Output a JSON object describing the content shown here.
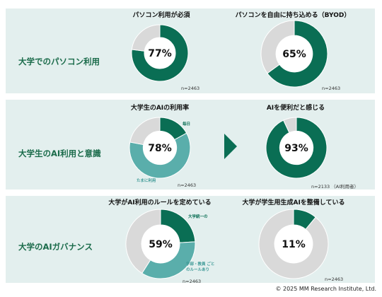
{
  "sections": [
    {
      "label": "大学でのパソコン利用"
    },
    {
      "label": "大学生のAI利用と意識"
    },
    {
      "label": "大学のAIガバナンス"
    }
  ],
  "colors": {
    "dark_green": "#0a6e54",
    "teal": "#5aaeab",
    "gray": "#d9d9d9",
    "panel_bg": "#e3efee",
    "section_label": "#1a6b4a"
  },
  "chart_data": [
    {
      "type": "pie",
      "title": "パソコン利用が必須",
      "center_label": "77%",
      "n": "n=2463",
      "series": [
        {
          "values": [
            77,
            23
          ],
          "colors": [
            "#0a6e54",
            "#d9d9d9"
          ]
        }
      ]
    },
    {
      "type": "pie",
      "title": "パソコンを自由に持ち込める（BYOD）",
      "center_label": "65%",
      "n": "n=2463",
      "series": [
        {
          "values": [
            65,
            35
          ],
          "colors": [
            "#0a6e54",
            "#d9d9d9"
          ]
        }
      ]
    },
    {
      "type": "pie",
      "title": "大学生のAIの利用率",
      "center_label": "78%",
      "n": "n=2463",
      "categories": [
        "毎日",
        "たまに利用",
        ""
      ],
      "series": [
        {
          "values": [
            17,
            61,
            22
          ],
          "colors": [
            "#0a6e54",
            "#5aaeab",
            "#d9d9d9"
          ]
        }
      ]
    },
    {
      "type": "pie",
      "title": "AIを便利だと感じる",
      "center_label": "93%",
      "n": "n=2133 （AI利用者）",
      "series": [
        {
          "values": [
            93,
            7
          ],
          "colors": [
            "#0a6e54",
            "#d9d9d9"
          ]
        }
      ]
    },
    {
      "type": "pie",
      "title": "大学がAI利用のルールを定めている",
      "center_label": "59%",
      "n": "n=2463",
      "categories": [
        "大学統一の",
        "学部・教員 ごとのルールあり",
        ""
      ],
      "series": [
        {
          "values": [
            24,
            35,
            41
          ],
          "colors": [
            "#0a6e54",
            "#5aaeab",
            "#d9d9d9"
          ]
        }
      ]
    },
    {
      "type": "pie",
      "title": "大学が学生用生成AIを整備している",
      "center_label": "11%",
      "n": "n=2463",
      "series": [
        {
          "values": [
            11,
            89
          ],
          "colors": [
            "#0a6e54",
            "#d9d9d9"
          ]
        }
      ]
    }
  ],
  "copyright": "© 2025 MM Research Institute, Ltd."
}
